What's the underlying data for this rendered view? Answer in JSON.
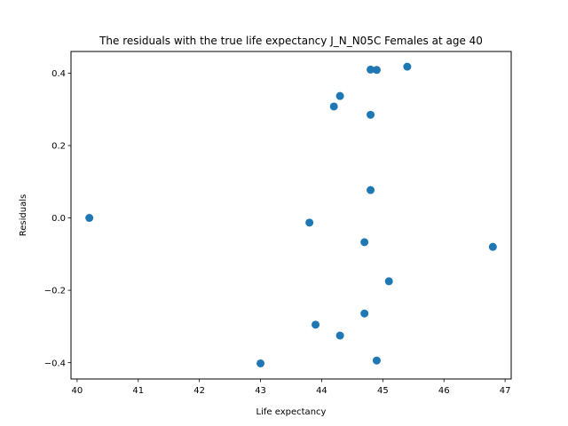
{
  "chart_data": {
    "type": "scatter",
    "title": "The residuals with the true life expectancy J_N_N05C Females at age 40",
    "xlabel": "Life expectancy",
    "ylabel": "Residuals",
    "xlim": [
      39.9,
      47.1
    ],
    "ylim": [
      -0.445,
      0.46
    ],
    "xticks": [
      40,
      41,
      42,
      43,
      44,
      45,
      46,
      47
    ],
    "xtick_labels": [
      "40",
      "41",
      "42",
      "43",
      "44",
      "45",
      "46",
      "47"
    ],
    "yticks": [
      -0.4,
      -0.2,
      0.0,
      0.2,
      0.4
    ],
    "ytick_labels": [
      "−0.4",
      "−0.2",
      "0.0",
      "0.2",
      "0.4"
    ],
    "grid": false,
    "point_color": "#1f77b4",
    "points": [
      {
        "x": 40.2,
        "y": 0.0
      },
      {
        "x": 43.0,
        "y": -0.402
      },
      {
        "x": 43.8,
        "y": -0.013
      },
      {
        "x": 43.9,
        "y": -0.295
      },
      {
        "x": 44.2,
        "y": 0.308
      },
      {
        "x": 44.3,
        "y": 0.337
      },
      {
        "x": 44.3,
        "y": -0.325
      },
      {
        "x": 44.7,
        "y": -0.067
      },
      {
        "x": 44.7,
        "y": -0.264
      },
      {
        "x": 44.8,
        "y": 0.41
      },
      {
        "x": 44.8,
        "y": 0.285
      },
      {
        "x": 44.8,
        "y": 0.077
      },
      {
        "x": 44.9,
        "y": 0.409
      },
      {
        "x": 44.9,
        "y": -0.394
      },
      {
        "x": 45.1,
        "y": -0.175
      },
      {
        "x": 45.4,
        "y": 0.418
      },
      {
        "x": 46.8,
        "y": -0.08
      }
    ]
  }
}
